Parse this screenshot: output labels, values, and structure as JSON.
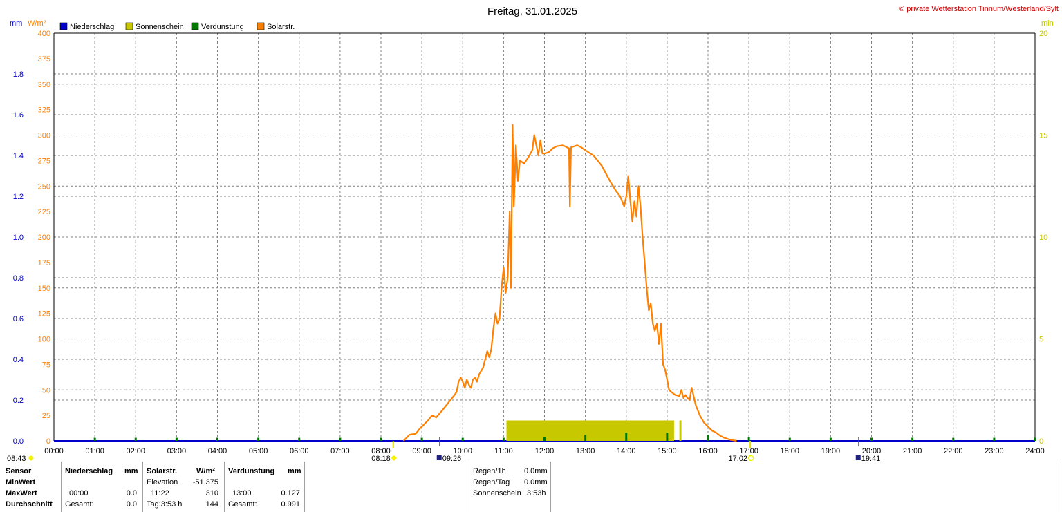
{
  "title": "Freitag, 31.01.2025",
  "copyright": "© private Wetterstation Tinnum/Westerland/Sylt",
  "colors": {
    "rain": "#0000c8",
    "sun": "#c8c800",
    "evap": "#007800",
    "solar": "#ff8000",
    "grid": "#808080",
    "copyright": "#c80000"
  },
  "units": {
    "left1": "mm",
    "left2": "W/m²",
    "right": "min"
  },
  "legend": [
    {
      "label": "Niederschlag",
      "color": "#0000c8"
    },
    {
      "label": "Sonnenschein",
      "color": "#c8c800"
    },
    {
      "label": "Verdunstung",
      "color": "#007800"
    },
    {
      "label": "Solarstr.",
      "color": "#ff8000"
    }
  ],
  "markers": {
    "left_time": "08:43",
    "sunrise": "08:18",
    "moonrise": "09:26",
    "sunset": "17:02",
    "moonset": "19:41"
  },
  "chart_data": {
    "type": "line",
    "x_ticks": [
      "00:00",
      "01:00",
      "02:00",
      "03:00",
      "04:00",
      "05:00",
      "06:00",
      "07:00",
      "08:00",
      "09:00",
      "10:00",
      "11:00",
      "12:00",
      "13:00",
      "14:00",
      "15:00",
      "16:00",
      "17:00",
      "18:00",
      "19:00",
      "20:00",
      "21:00",
      "22:00",
      "23:00",
      "24:00"
    ],
    "xlim": [
      0,
      24
    ],
    "y_solar_ticks": [
      "0",
      "25",
      "50",
      "75",
      "100",
      "125",
      "150",
      "175",
      "200",
      "225",
      "250",
      "275",
      "300",
      "325",
      "350",
      "375",
      "400"
    ],
    "y_solar_lim": [
      0,
      400
    ],
    "y_mm_ticks": [
      "0.0",
      "0.2",
      "0.4",
      "0.6",
      "0.8",
      "1.0",
      "1.2",
      "1.4",
      "1.6",
      "1.8"
    ],
    "y_mm_lim": [
      0,
      2.0
    ],
    "y_min_ticks": [
      "0",
      "5",
      "10",
      "15",
      "20"
    ],
    "y_min_lim": [
      0,
      20
    ],
    "series": [
      {
        "name": "Solarstr.",
        "unit": "W/m²",
        "points": [
          [
            8.55,
            0
          ],
          [
            8.6,
            2
          ],
          [
            8.7,
            6
          ],
          [
            8.85,
            7
          ],
          [
            8.95,
            12
          ],
          [
            9.05,
            16
          ],
          [
            9.15,
            20
          ],
          [
            9.25,
            25
          ],
          [
            9.35,
            23
          ],
          [
            9.5,
            30
          ],
          [
            9.6,
            35
          ],
          [
            9.7,
            40
          ],
          [
            9.8,
            45
          ],
          [
            9.85,
            48
          ],
          [
            9.9,
            58
          ],
          [
            9.95,
            62
          ],
          [
            10.0,
            58
          ],
          [
            10.05,
            52
          ],
          [
            10.1,
            60
          ],
          [
            10.15,
            55
          ],
          [
            10.2,
            52
          ],
          [
            10.25,
            60
          ],
          [
            10.3,
            62
          ],
          [
            10.35,
            58
          ],
          [
            10.4,
            65
          ],
          [
            10.5,
            72
          ],
          [
            10.55,
            80
          ],
          [
            10.6,
            88
          ],
          [
            10.65,
            82
          ],
          [
            10.7,
            90
          ],
          [
            10.75,
            110
          ],
          [
            10.8,
            125
          ],
          [
            10.85,
            115
          ],
          [
            10.9,
            120
          ],
          [
            10.95,
            150
          ],
          [
            11.0,
            170
          ],
          [
            11.05,
            145
          ],
          [
            11.1,
            160
          ],
          [
            11.15,
            225
          ],
          [
            11.18,
            150
          ],
          [
            11.22,
            310
          ],
          [
            11.25,
            230
          ],
          [
            11.3,
            290
          ],
          [
            11.35,
            255
          ],
          [
            11.4,
            275
          ],
          [
            11.5,
            272
          ],
          [
            11.6,
            278
          ],
          [
            11.7,
            285
          ],
          [
            11.75,
            300
          ],
          [
            11.8,
            290
          ],
          [
            11.85,
            280
          ],
          [
            11.9,
            295
          ],
          [
            11.95,
            282
          ],
          [
            12.0,
            282
          ],
          [
            12.1,
            283
          ],
          [
            12.2,
            287
          ],
          [
            12.3,
            289
          ],
          [
            12.45,
            290
          ],
          [
            12.6,
            287
          ],
          [
            12.62,
            230
          ],
          [
            12.65,
            288
          ],
          [
            12.8,
            290
          ],
          [
            12.9,
            288
          ],
          [
            13.0,
            285
          ],
          [
            13.2,
            280
          ],
          [
            13.4,
            270
          ],
          [
            13.6,
            255
          ],
          [
            13.75,
            245
          ],
          [
            13.85,
            240
          ],
          [
            13.95,
            230
          ],
          [
            14.0,
            240
          ],
          [
            14.05,
            260
          ],
          [
            14.1,
            235
          ],
          [
            14.15,
            215
          ],
          [
            14.2,
            235
          ],
          [
            14.25,
            220
          ],
          [
            14.3,
            250
          ],
          [
            14.35,
            230
          ],
          [
            14.4,
            200
          ],
          [
            14.45,
            175
          ],
          [
            14.5,
            150
          ],
          [
            14.55,
            128
          ],
          [
            14.6,
            135
          ],
          [
            14.65,
            115
          ],
          [
            14.7,
            108
          ],
          [
            14.75,
            115
          ],
          [
            14.8,
            95
          ],
          [
            14.85,
            115
          ],
          [
            14.9,
            75
          ],
          [
            14.95,
            70
          ],
          [
            15.0,
            60
          ],
          [
            15.05,
            50
          ],
          [
            15.1,
            48
          ],
          [
            15.2,
            45
          ],
          [
            15.3,
            44
          ],
          [
            15.35,
            50
          ],
          [
            15.4,
            42
          ],
          [
            15.45,
            45
          ],
          [
            15.5,
            42
          ],
          [
            15.55,
            40
          ],
          [
            15.6,
            52
          ],
          [
            15.7,
            35
          ],
          [
            15.8,
            25
          ],
          [
            15.9,
            18
          ],
          [
            16.0,
            14
          ],
          [
            16.1,
            10
          ],
          [
            16.2,
            8
          ],
          [
            16.3,
            5
          ],
          [
            16.4,
            3
          ],
          [
            16.55,
            1
          ],
          [
            16.7,
            0
          ]
        ]
      },
      {
        "name": "Sonnenschein",
        "unit": "min",
        "segments": [
          [
            11.07,
            15.17
          ],
          [
            15.3,
            15.35
          ]
        ],
        "value": 1
      }
    ],
    "evap_ticks_mm": [
      0.005,
      0.005,
      0.005,
      0.005,
      0.005,
      0.005,
      0.005,
      0.005,
      0.005,
      0.005,
      0.005,
      0.01,
      0.02,
      0.03,
      0.03,
      0.02,
      0.01,
      0.005,
      0.005,
      0.005,
      0.005,
      0.005,
      0.005,
      0.005
    ],
    "markers_hours": {
      "sunrise": 8.3,
      "moonrise": 9.433,
      "sunset": 17.033,
      "moonset": 19.683
    }
  },
  "table": {
    "row_labels": [
      "Sensor",
      "MinWert",
      "MaxWert",
      "Durchschnitt"
    ],
    "niederschlag": {
      "header": "Niederschlag",
      "unit": "mm",
      "max_time": "00:00",
      "max": "0.0",
      "avg_label": "Gesamt:",
      "avg": "0.0"
    },
    "solar": {
      "header": "Solarstr.",
      "unit": "W/m²",
      "min_label": "Elevation",
      "min": "-51.375",
      "max_time": "11:22",
      "max": "310",
      "avg_label": "Tag:3:53 h",
      "avg": "144"
    },
    "verdunstung": {
      "header": "Verdunstung",
      "unit": "mm",
      "max_time": "13:00",
      "max": "0.127",
      "avg_label": "Gesamt:",
      "avg": "0.991"
    },
    "summary": [
      {
        "label": "Regen/1h",
        "value": "0.0mm"
      },
      {
        "label": "Regen/Tag",
        "value": "0.0mm"
      },
      {
        "label": "Sonnenschein",
        "value": "3:53h"
      }
    ]
  }
}
